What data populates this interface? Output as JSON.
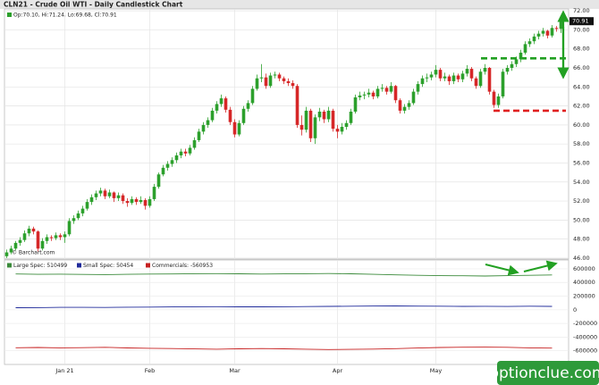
{
  "chart_data": {
    "type": "candlestick",
    "title": "CLN21 - Crude Oil WTI - Daily Candlestick Chart",
    "info": "Op:70.10, Hi:71.24, Lo:69.68, Cl:70.91",
    "source": "© Barchart.com",
    "categories": [
      null,
      null,
      null,
      null,
      null,
      null,
      null,
      null,
      null,
      null,
      null,
      null,
      null,
      "Jan 21",
      null,
      null,
      null,
      null,
      null,
      null,
      null,
      null,
      null,
      null,
      null,
      null,
      null,
      null,
      null,
      null,
      null,
      null,
      "Feb",
      null,
      null,
      null,
      null,
      null,
      null,
      null,
      null,
      null,
      null,
      null,
      null,
      null,
      null,
      null,
      null,
      null,
      null,
      "Mar",
      null,
      null,
      null,
      null,
      null,
      null,
      null,
      null,
      null,
      null,
      null,
      null,
      null,
      null,
      null,
      null,
      null,
      null,
      null,
      null,
      null,
      null,
      "Apr",
      null,
      null,
      null,
      null,
      null,
      null,
      null,
      null,
      null,
      null,
      null,
      null,
      null,
      null,
      null,
      null,
      null,
      null,
      null,
      null,
      null,
      "May",
      null,
      null,
      null,
      null,
      null,
      null,
      null,
      null,
      null,
      null,
      null,
      null,
      null,
      null,
      null,
      null,
      null,
      null,
      null,
      null,
      null,
      null,
      null,
      null,
      null,
      null,
      null,
      null
    ],
    "ohlc": [
      [
        46.2,
        46.9,
        46.0,
        46.6
      ],
      [
        46.6,
        47.3,
        46.4,
        47.0
      ],
      [
        47.0,
        47.8,
        46.8,
        47.6
      ],
      [
        47.6,
        48.2,
        47.3,
        47.9
      ],
      [
        47.9,
        48.9,
        47.7,
        48.6
      ],
      [
        48.6,
        49.4,
        48.3,
        49.1
      ],
      [
        49.1,
        49.3,
        48.5,
        48.8
      ],
      [
        48.8,
        48.9,
        46.7,
        47.0
      ],
      [
        47.0,
        48.1,
        46.8,
        47.8
      ],
      [
        47.8,
        48.5,
        47.5,
        48.2
      ],
      [
        48.2,
        48.4,
        47.8,
        48.1
      ],
      [
        48.1,
        48.7,
        47.9,
        48.4
      ],
      [
        48.4,
        48.6,
        47.9,
        48.2
      ],
      [
        48.2,
        48.8,
        47.6,
        48.5
      ],
      [
        48.5,
        50.2,
        48.3,
        49.9
      ],
      [
        49.9,
        50.5,
        49.6,
        50.2
      ],
      [
        50.2,
        51.0,
        50.0,
        50.7
      ],
      [
        50.7,
        51.5,
        50.4,
        51.2
      ],
      [
        51.2,
        52.2,
        51.0,
        51.9
      ],
      [
        51.9,
        52.7,
        51.6,
        52.4
      ],
      [
        52.4,
        53.1,
        52.1,
        52.8
      ],
      [
        52.8,
        53.4,
        52.5,
        53.1
      ],
      [
        53.1,
        53.3,
        52.2,
        52.5
      ],
      [
        52.5,
        53.2,
        52.3,
        52.9
      ],
      [
        52.9,
        53.0,
        51.9,
        52.3
      ],
      [
        52.3,
        52.9,
        52.0,
        52.6
      ],
      [
        52.6,
        52.8,
        51.7,
        52.0
      ],
      [
        52.0,
        52.3,
        51.4,
        51.8
      ],
      [
        51.8,
        52.5,
        51.6,
        52.2
      ],
      [
        52.2,
        52.4,
        51.6,
        51.9
      ],
      [
        51.9,
        52.5,
        51.7,
        52.1
      ],
      [
        52.1,
        52.3,
        51.1,
        51.5
      ],
      [
        51.5,
        52.5,
        51.3,
        52.2
      ],
      [
        52.2,
        53.8,
        52.0,
        53.5
      ],
      [
        53.5,
        55.0,
        53.3,
        54.8
      ],
      [
        54.8,
        55.8,
        54.6,
        55.5
      ],
      [
        55.5,
        56.2,
        55.2,
        55.9
      ],
      [
        55.9,
        56.6,
        55.6,
        56.3
      ],
      [
        56.3,
        57.1,
        56.0,
        56.8
      ],
      [
        56.8,
        57.5,
        56.5,
        57.2
      ],
      [
        57.2,
        57.5,
        56.7,
        57.0
      ],
      [
        57.0,
        57.9,
        56.8,
        57.6
      ],
      [
        57.6,
        58.7,
        57.4,
        58.4
      ],
      [
        58.4,
        59.6,
        58.2,
        59.3
      ],
      [
        59.3,
        60.3,
        59.0,
        60.0
      ],
      [
        60.0,
        60.8,
        59.7,
        60.5
      ],
      [
        60.5,
        61.8,
        60.3,
        61.5
      ],
      [
        61.5,
        62.5,
        61.2,
        62.2
      ],
      [
        62.2,
        63.2,
        61.9,
        62.8
      ],
      [
        62.8,
        63.0,
        61.3,
        61.6
      ],
      [
        61.6,
        61.9,
        60.0,
        60.3
      ],
      [
        60.3,
        60.6,
        58.7,
        59.0
      ],
      [
        59.0,
        60.5,
        58.8,
        60.2
      ],
      [
        60.2,
        62.0,
        60.0,
        61.7
      ],
      [
        61.7,
        62.6,
        61.4,
        62.3
      ],
      [
        62.3,
        64.1,
        62.1,
        63.8
      ],
      [
        63.8,
        65.3,
        63.6,
        64.9
      ],
      [
        64.9,
        66.4,
        64.5,
        65.0
      ],
      [
        65.0,
        65.4,
        63.8,
        64.1
      ],
      [
        64.1,
        65.5,
        63.9,
        65.2
      ],
      [
        65.2,
        65.6,
        64.9,
        65.3
      ],
      [
        65.3,
        65.5,
        64.6,
        64.9
      ],
      [
        64.9,
        65.1,
        64.3,
        64.6
      ],
      [
        64.6,
        64.9,
        64.1,
        64.4
      ],
      [
        64.4,
        64.7,
        63.8,
        64.1
      ],
      [
        64.1,
        64.3,
        59.7,
        60.0
      ],
      [
        60.0,
        61.0,
        58.9,
        59.5
      ],
      [
        59.5,
        61.9,
        59.2,
        61.5
      ],
      [
        61.5,
        61.7,
        58.2,
        58.6
      ],
      [
        58.6,
        61.1,
        58.0,
        60.8
      ],
      [
        60.8,
        61.8,
        60.4,
        61.4
      ],
      [
        61.4,
        61.6,
        60.2,
        60.6
      ],
      [
        60.6,
        61.9,
        60.3,
        61.5
      ],
      [
        61.5,
        61.7,
        59.3,
        59.6
      ],
      [
        59.6,
        60.0,
        58.6,
        59.3
      ],
      [
        59.3,
        60.2,
        59.0,
        59.8
      ],
      [
        59.8,
        60.5,
        59.5,
        60.2
      ],
      [
        60.2,
        61.7,
        60.0,
        61.4
      ],
      [
        61.4,
        63.2,
        61.2,
        62.9
      ],
      [
        62.9,
        63.5,
        62.6,
        63.1
      ],
      [
        63.1,
        63.5,
        62.7,
        63.2
      ],
      [
        63.2,
        63.8,
        62.9,
        63.4
      ],
      [
        63.4,
        63.6,
        62.7,
        63.0
      ],
      [
        63.0,
        64.1,
        62.8,
        63.8
      ],
      [
        63.8,
        64.3,
        63.5,
        63.9
      ],
      [
        63.9,
        64.1,
        63.2,
        63.5
      ],
      [
        63.5,
        64.5,
        63.3,
        64.1
      ],
      [
        64.1,
        64.2,
        62.3,
        62.6
      ],
      [
        62.6,
        62.8,
        61.2,
        61.5
      ],
      [
        61.5,
        62.2,
        61.2,
        61.9
      ],
      [
        61.9,
        62.6,
        61.6,
        62.3
      ],
      [
        62.3,
        63.8,
        62.1,
        63.5
      ],
      [
        63.5,
        64.6,
        63.2,
        64.3
      ],
      [
        64.3,
        65.2,
        64.0,
        64.9
      ],
      [
        64.9,
        65.4,
        64.5,
        65.0
      ],
      [
        65.0,
        65.6,
        64.7,
        65.3
      ],
      [
        65.3,
        66.3,
        65.0,
        65.8
      ],
      [
        65.8,
        66.0,
        64.6,
        64.9
      ],
      [
        64.9,
        65.5,
        64.6,
        65.1
      ],
      [
        65.1,
        65.3,
        64.2,
        64.6
      ],
      [
        64.6,
        65.5,
        64.3,
        65.2
      ],
      [
        65.2,
        65.4,
        64.5,
        64.8
      ],
      [
        64.8,
        65.7,
        64.5,
        65.4
      ],
      [
        65.4,
        66.3,
        65.1,
        65.9
      ],
      [
        65.9,
        66.1,
        64.6,
        64.9
      ],
      [
        64.9,
        65.1,
        63.8,
        64.1
      ],
      [
        64.1,
        65.9,
        63.9,
        65.6
      ],
      [
        65.6,
        66.4,
        65.3,
        66.0
      ],
      [
        66.0,
        66.1,
        63.2,
        63.5
      ],
      [
        63.5,
        63.7,
        61.8,
        62.1
      ],
      [
        62.1,
        63.3,
        61.8,
        63.0
      ],
      [
        63.0,
        65.9,
        62.8,
        65.6
      ],
      [
        65.6,
        66.3,
        65.3,
        66.0
      ],
      [
        66.0,
        66.7,
        65.7,
        66.4
      ],
      [
        66.4,
        67.2,
        66.1,
        66.9
      ],
      [
        66.9,
        67.9,
        66.6,
        67.6
      ],
      [
        67.6,
        68.8,
        67.4,
        68.5
      ],
      [
        68.5,
        69.1,
        68.2,
        68.8
      ],
      [
        68.8,
        69.6,
        68.5,
        69.3
      ],
      [
        69.3,
        69.9,
        69.0,
        69.6
      ],
      [
        69.6,
        70.2,
        69.3,
        69.9
      ],
      [
        69.9,
        70.0,
        69.1,
        69.4
      ],
      [
        69.4,
        70.5,
        69.2,
        70.2
      ],
      [
        70.2,
        70.4,
        69.8,
        70.1
      ],
      [
        70.1,
        71.24,
        69.68,
        70.91
      ]
    ],
    "up_color": "#2ca02c",
    "down_color": "#d62728",
    "ylim": [
      45.9,
      72.2
    ],
    "yticks": [
      {
        "value": 46,
        "label": "46.00"
      },
      {
        "value": 48,
        "label": "48.00"
      },
      {
        "value": 50,
        "label": "50.00"
      },
      {
        "value": 52,
        "label": "52.00"
      },
      {
        "value": 54,
        "label": "54.00"
      },
      {
        "value": 56,
        "label": "56.00"
      },
      {
        "value": 58,
        "label": "58.00"
      },
      {
        "value": 60,
        "label": "60.00"
      },
      {
        "value": 62,
        "label": "62.00"
      },
      {
        "value": 64,
        "label": "64.00"
      },
      {
        "value": 66,
        "label": "66.00"
      },
      {
        "value": 68,
        "label": "68.00"
      },
      {
        "value": 70,
        "label": "70.00"
      },
      {
        "value": 72,
        "label": "72.00"
      }
    ],
    "grid": true,
    "levels": [
      {
        "value": 67.0,
        "color": "#22a022"
      },
      {
        "value": 61.5,
        "color": "#e02020"
      }
    ],
    "cot": {
      "type": "line",
      "ylim": [
        -800000,
        730000
      ],
      "yticks": [
        600000,
        400000,
        200000,
        0,
        -200000,
        -400000,
        -600000
      ],
      "series": [
        {
          "name": "Large Spec: 510499",
          "color": "#3a8a3a",
          "values": [
            525000,
            520000,
            522000,
            518000,
            515000,
            520000,
            523000,
            525000,
            528000,
            530000,
            527000,
            524000,
            526000,
            529000,
            531000,
            527000,
            520000,
            512000,
            505000,
            500000,
            498000,
            495000,
            500000,
            505000,
            510499
          ]
        },
        {
          "name": "Small Spec: 50454",
          "color": "#1f2a9a",
          "values": [
            30000,
            32000,
            35000,
            36000,
            34000,
            38000,
            40000,
            42000,
            45000,
            46000,
            44000,
            43000,
            45000,
            48000,
            50000,
            52000,
            55000,
            56000,
            54000,
            52000,
            50000,
            51000,
            49000,
            52000,
            50454
          ]
        },
        {
          "name": "Commercials: -560953",
          "color": "#c62020",
          "values": [
            -555000,
            -552000,
            -557000,
            -554000,
            -549000,
            -558000,
            -563000,
            -567000,
            -573000,
            -576000,
            -571000,
            -567000,
            -571000,
            -577000,
            -581000,
            -579000,
            -575000,
            -568000,
            -559000,
            -552000,
            -548000,
            -546000,
            -549000,
            -557000,
            -560953
          ]
        }
      ]
    }
  },
  "watermark": "optionclue.com"
}
